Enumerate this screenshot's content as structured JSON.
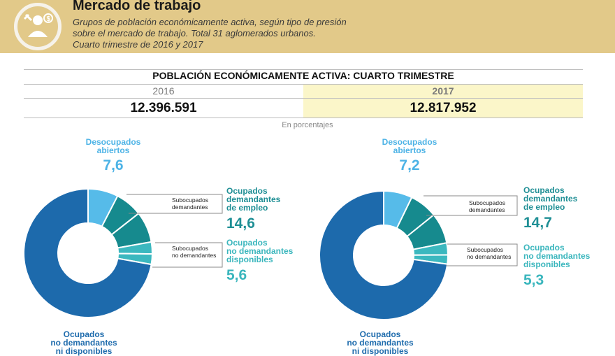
{
  "header": {
    "title": "Mercado de trabajo",
    "subtitle_lines": [
      "Grupos de población económicamente activa, según tipo de presión",
      "sobre el mercado de trabajo. Total 31 aglomerados urbanos.",
      "Cuarto trimestre de 2016 y 2017"
    ],
    "icon": "worker-money-icon"
  },
  "table": {
    "title": "POBLACIÓN ECONÓMICAMENTE ACTIVA: CUARTO TRIMESTRE",
    "years": [
      "2016",
      "2017"
    ],
    "totals": [
      "12.396.591",
      "12.817.952"
    ],
    "note": "En porcentajes"
  },
  "labels": {
    "desocupados": [
      "Desocupados",
      "abiertos"
    ],
    "ocupados_dem": [
      "Ocupados",
      "demandantes",
      "de empleo"
    ],
    "sub_dem": [
      "Subocupados",
      "demandantes"
    ],
    "ocupados_nodem_disp": [
      "Ocupados",
      "no demandantes",
      "disponibles"
    ],
    "sub_nodem": [
      "Subocupados",
      "no demandantes"
    ],
    "ocupados_nodem_nidisp": [
      "Ocupados",
      "no demandantes",
      "ni disponibles"
    ]
  },
  "colors": {
    "desocupados": "#56bbe9",
    "sub_dem": "#168a8e",
    "ocup_dem": "#168a8e",
    "sub_nodem": "#3bb8bf",
    "ocup_nodem_disp": "#3bb8bf",
    "ocup_nodem_nidisp": "#1d6aac",
    "header_bg": "#e2c989",
    "highlight": "#fbf6c9"
  },
  "chart_data": [
    {
      "type": "pie",
      "year": "2016",
      "categories": [
        "Desocupados abiertos",
        "Subocupados demandantes",
        "Ocupados demandantes de empleo (resto)",
        "Subocupados no demandantes",
        "Ocupados no demandantes disponibles (resto)",
        "Ocupados no demandantes ni disponibles"
      ],
      "values": [
        7.6,
        6.8,
        7.8,
        3.0,
        2.6,
        72.2
      ],
      "shown_values": {
        "desocupados": "7,6",
        "demandantes": "14,6",
        "no_demandantes_disponibles": "5,6"
      }
    },
    {
      "type": "pie",
      "year": "2017",
      "categories": [
        "Desocupados abiertos",
        "Subocupados demandantes",
        "Ocupados demandantes de empleo (resto)",
        "Subocupados no demandantes",
        "Ocupados no demandantes disponibles (resto)",
        "Ocupados no demandantes ni disponibles"
      ],
      "values": [
        7.2,
        7.0,
        7.7,
        3.0,
        2.3,
        72.8
      ],
      "shown_values": {
        "desocupados": "7,2",
        "demandantes": "14,7",
        "no_demandantes_disponibles": "5,3"
      }
    }
  ]
}
